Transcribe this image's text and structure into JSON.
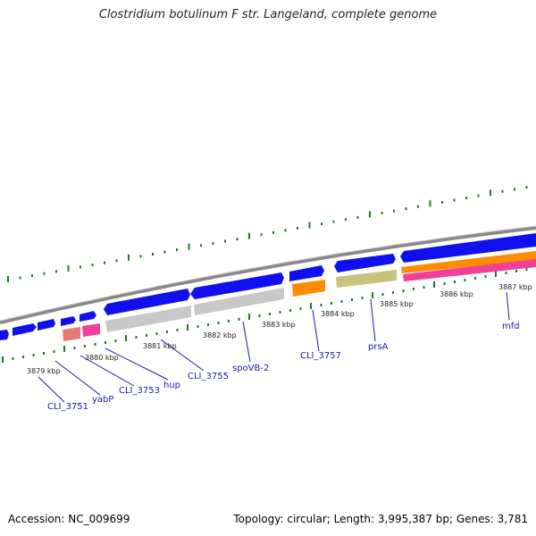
{
  "title": "Clostridium botulinum F str. Langeland, complete genome",
  "footer": {
    "accession": "Accession: NC_009699",
    "summary": "Topology: circular; Length: 3,995,387 bp; Genes: 3,781"
  },
  "colors": {
    "forward_gene": "#1010ee",
    "pseudo_gray": "#c8c8c8",
    "orange": "#ff8c00",
    "khaki": "#c9c27a",
    "pink": "#f0409a",
    "salmon": "#e87878",
    "backbone": "#8a8a8a",
    "gc_tick": "#1a7a1a",
    "label": "#1a1aa8"
  },
  "scale_labels": [
    {
      "text": "3879 kbp"
    },
    {
      "text": "3880 kbp"
    },
    {
      "text": "3881 kbp"
    },
    {
      "text": "3882 kbp"
    },
    {
      "text": "3883 kbp"
    },
    {
      "text": "3884 kbp"
    },
    {
      "text": "3885 kbp"
    },
    {
      "text": "3886 kbp"
    },
    {
      "text": "3887 kbp"
    }
  ],
  "gene_labels": [
    {
      "text": "CLI_3751"
    },
    {
      "text": "yabP"
    },
    {
      "text": "CLI_3753"
    },
    {
      "text": "hup"
    },
    {
      "text": "CLI_3755"
    },
    {
      "text": "spoVB-2"
    },
    {
      "text": "CLI_3757"
    },
    {
      "text": "prsA"
    },
    {
      "text": "mfd"
    }
  ]
}
